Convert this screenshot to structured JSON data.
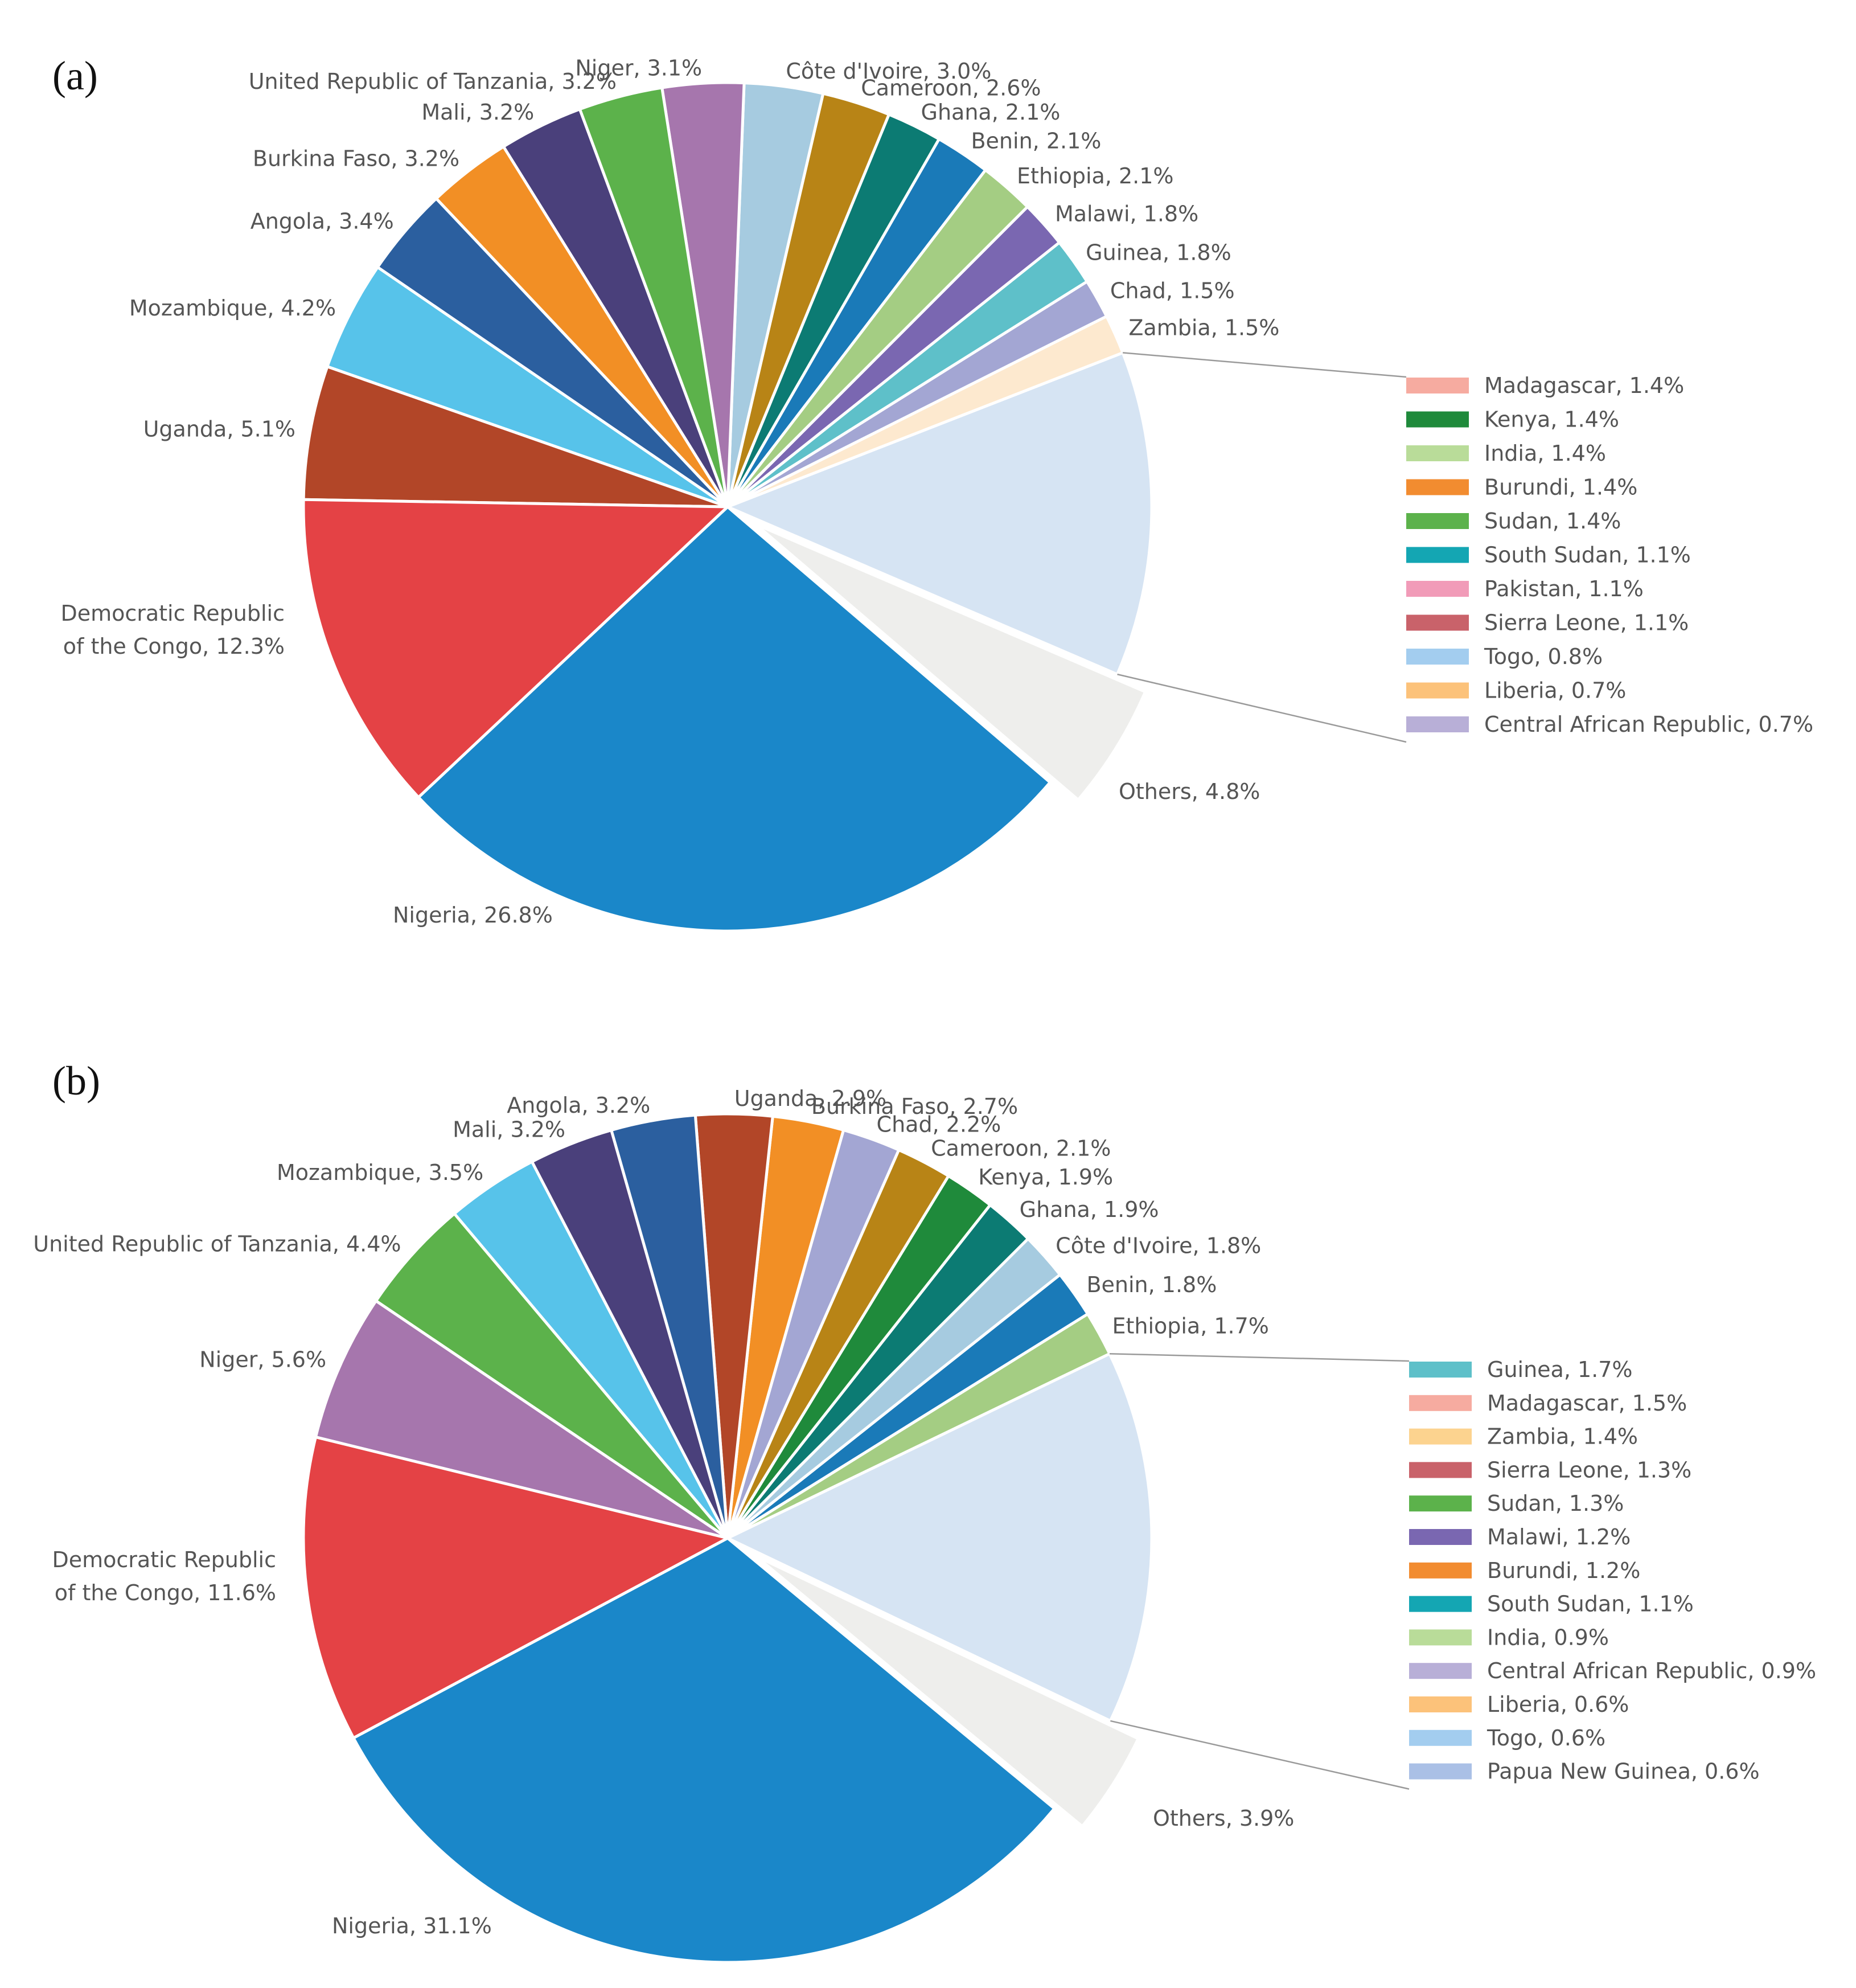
{
  "chart_data": [
    {
      "type": "pie",
      "panel_label": "(a)",
      "slices": [
        {
          "label": "Nigeria, 26.8%",
          "value": 26.8,
          "color": "#1a87c9"
        },
        {
          "label": "Others, 4.8%",
          "value": 4.8,
          "color": "#eeeeec",
          "exploded": true
        },
        {
          "label": "Others",
          "value": 12.4,
          "color": "#d6e4f3",
          "breakdown": true
        },
        {
          "label": "Zambia, 1.5%",
          "value": 1.5,
          "color": "#fde9cf"
        },
        {
          "label": "Chad, 1.5%",
          "value": 1.5,
          "color": "#a3a6d3"
        },
        {
          "label": "Guinea, 1.8%",
          "value": 1.8,
          "color": "#5ec0c9"
        },
        {
          "label": "Malawi, 1.8%",
          "value": 1.8,
          "color": "#7a67b1"
        },
        {
          "label": "Ethiopia, 2.1%",
          "value": 2.1,
          "color": "#a4cd83"
        },
        {
          "label": "Benin, 2.1%",
          "value": 2.1,
          "color": "#1a7ab8"
        },
        {
          "label": "Ghana, 2.1%",
          "value": 2.1,
          "color": "#0c7b73"
        },
        {
          "label": "Cameroon, 2.6%",
          "value": 2.6,
          "color": "#b88416"
        },
        {
          "label": "Côte d'Ivoire, 3.0%",
          "value": 3.0,
          "color": "#a6cbe0"
        },
        {
          "label": "Niger, 3.1%",
          "value": 3.1,
          "color": "#a676ad"
        },
        {
          "label": "United Republic of Tanzania, 3.2%",
          "value": 3.2,
          "color": "#5cb24b"
        },
        {
          "label": "Mali, 3.2%",
          "value": 3.2,
          "color": "#4a407b"
        },
        {
          "label": "Burkina Faso, 3.2%",
          "value": 3.2,
          "color": "#f28f25"
        },
        {
          "label": "Angola, 3.4%",
          "value": 3.4,
          "color": "#2b5f9f"
        },
        {
          "label": "Mozambique, 4.2%",
          "value": 4.2,
          "color": "#57c3ea"
        },
        {
          "label": "Uganda, 5.1%",
          "value": 5.1,
          "color": "#b24628"
        },
        {
          "label": "Democratic Republic of the Congo, 12.3%",
          "value": 12.3,
          "color": "#e44245"
        }
      ],
      "legend": [
        {
          "label": "Madagascar, 1.4%",
          "color": "#f6aba0"
        },
        {
          "label": "Kenya, 1.4%",
          "color": "#1f8a3b"
        },
        {
          "label": "India, 1.4%",
          "color": "#b9dc99"
        },
        {
          "label": "Burundi, 1.4%",
          "color": "#f28c30"
        },
        {
          "label": "Sudan, 1.4%",
          "color": "#5cb24b"
        },
        {
          "label": "South Sudan, 1.1%",
          "color": "#14a6b3"
        },
        {
          "label": "Pakistan, 1.1%",
          "color": "#f19bb8"
        },
        {
          "label": "Sierra Leone, 1.1%",
          "color": "#c9626a"
        },
        {
          "label": "Togo, 0.8%",
          "color": "#a3cdef"
        },
        {
          "label": "Liberia, 0.7%",
          "color": "#fcc27a"
        },
        {
          "label": "Central African Republic, 0.7%",
          "color": "#b8afd7"
        }
      ]
    },
    {
      "type": "pie",
      "panel_label": "(b)",
      "slices": [
        {
          "label": "Nigeria, 31.1%",
          "value": 31.1,
          "color": "#1a87c9"
        },
        {
          "label": "Others, 3.9%",
          "value": 3.9,
          "color": "#eeeeec",
          "exploded": true
        },
        {
          "label": "Others",
          "value": 14.2,
          "color": "#d6e4f3",
          "breakdown": true
        },
        {
          "label": "Ethiopia, 1.7%",
          "value": 1.7,
          "color": "#a4cd83"
        },
        {
          "label": "Benin, 1.8%",
          "value": 1.8,
          "color": "#1a7ab8"
        },
        {
          "label": "Côte d'Ivoire, 1.8%",
          "value": 1.8,
          "color": "#a6cbe0"
        },
        {
          "label": "Ghana, 1.9%",
          "value": 1.9,
          "color": "#0c7b73"
        },
        {
          "label": "Kenya, 1.9%",
          "value": 1.9,
          "color": "#1f8a3b"
        },
        {
          "label": "Cameroon, 2.1%",
          "value": 2.1,
          "color": "#b88416"
        },
        {
          "label": "Chad, 2.2%",
          "value": 2.2,
          "color": "#a3a6d3"
        },
        {
          "label": "Burkina Faso, 2.7%",
          "value": 2.7,
          "color": "#f28f25"
        },
        {
          "label": "Uganda, 2.9%",
          "value": 2.9,
          "color": "#b24628"
        },
        {
          "label": "Angola, 3.2%",
          "value": 3.2,
          "color": "#2b5f9f"
        },
        {
          "label": "Mali, 3.2%",
          "value": 3.2,
          "color": "#4a407b"
        },
        {
          "label": "Mozambique, 3.5%",
          "value": 3.5,
          "color": "#57c3ea"
        },
        {
          "label": "United Republic of Tanzania, 4.4%",
          "value": 4.4,
          "color": "#5cb24b"
        },
        {
          "label": "Niger, 5.6%",
          "value": 5.6,
          "color": "#a676ad"
        },
        {
          "label": "Democratic Republic of the Congo, 11.6%",
          "value": 11.6,
          "color": "#e44245"
        }
      ],
      "legend": [
        {
          "label": "Guinea, 1.7%",
          "color": "#5ec0c9"
        },
        {
          "label": "Madagascar, 1.5%",
          "color": "#f6aba0"
        },
        {
          "label": "Zambia, 1.4%",
          "color": "#fcd38f"
        },
        {
          "label": "Sierra Leone, 1.3%",
          "color": "#c9626a"
        },
        {
          "label": "Sudan, 1.3%",
          "color": "#5cb24b"
        },
        {
          "label": "Malawi, 1.2%",
          "color": "#7a67b1"
        },
        {
          "label": "Burundi, 1.2%",
          "color": "#f28c30"
        },
        {
          "label": "South Sudan, 1.1%",
          "color": "#14a6b3"
        },
        {
          "label": "India, 0.9%",
          "color": "#b9dc99"
        },
        {
          "label": "Central African Republic, 0.9%",
          "color": "#b8afd7"
        },
        {
          "label": "Liberia, 0.6%",
          "color": "#fcc27a"
        },
        {
          "label": "Togo, 0.6%",
          "color": "#a3cdef"
        },
        {
          "label": "Papua New Guinea, 0.6%",
          "color": "#aac0e6"
        }
      ]
    }
  ]
}
